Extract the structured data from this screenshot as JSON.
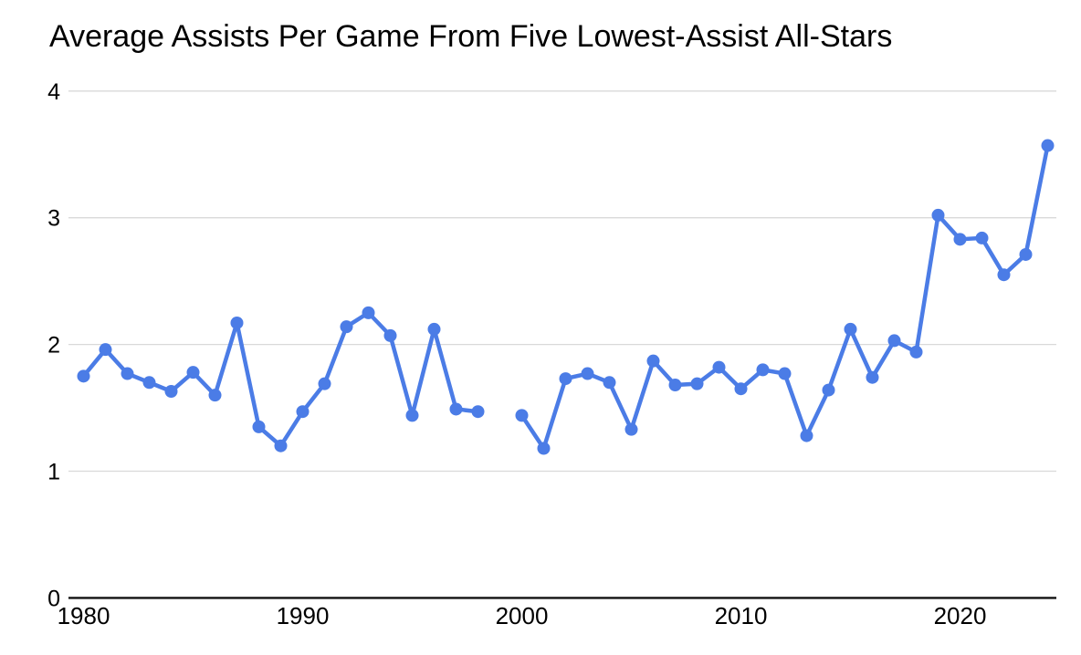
{
  "chart_data": {
    "type": "line",
    "title": "Average Assists Per Game From Five Lowest-Assist All-Stars",
    "xlabel": "",
    "ylabel": "",
    "x": [
      1980,
      1981,
      1982,
      1983,
      1984,
      1985,
      1986,
      1987,
      1988,
      1989,
      1990,
      1991,
      1992,
      1993,
      1994,
      1995,
      1996,
      1997,
      1998,
      1999,
      2000,
      2001,
      2002,
      2003,
      2004,
      2005,
      2006,
      2007,
      2008,
      2009,
      2010,
      2011,
      2012,
      2013,
      2014,
      2015,
      2016,
      2017,
      2018,
      2019,
      2020,
      2021,
      2022,
      2023,
      2024
    ],
    "series": [
      {
        "name": "Average assists per game",
        "values": [
          1.75,
          1.96,
          1.77,
          1.7,
          1.63,
          1.78,
          1.6,
          2.17,
          1.35,
          1.2,
          1.47,
          1.69,
          2.14,
          2.25,
          2.07,
          1.44,
          2.12,
          1.49,
          1.47,
          null,
          1.44,
          1.18,
          1.73,
          1.77,
          1.7,
          1.33,
          1.87,
          1.68,
          1.69,
          1.82,
          1.65,
          1.8,
          1.77,
          1.28,
          1.64,
          2.12,
          1.74,
          2.03,
          1.94,
          3.02,
          2.83,
          2.84,
          2.55,
          2.71,
          3.57
        ]
      }
    ],
    "missing_x": [
      1999
    ],
    "xticks": [
      1980,
      1990,
      2000,
      2010,
      2020
    ],
    "yticks": [
      0,
      1,
      2,
      3,
      4
    ],
    "xlim": [
      1980,
      2024
    ],
    "ylim": [
      0,
      4
    ],
    "grid": true,
    "legend": "none",
    "marker": "circle",
    "colors": {
      "line": "#4b7ce6",
      "grid": "#d9d9d9",
      "axis": "#111111",
      "text": "#000000",
      "background": "#ffffff"
    }
  }
}
